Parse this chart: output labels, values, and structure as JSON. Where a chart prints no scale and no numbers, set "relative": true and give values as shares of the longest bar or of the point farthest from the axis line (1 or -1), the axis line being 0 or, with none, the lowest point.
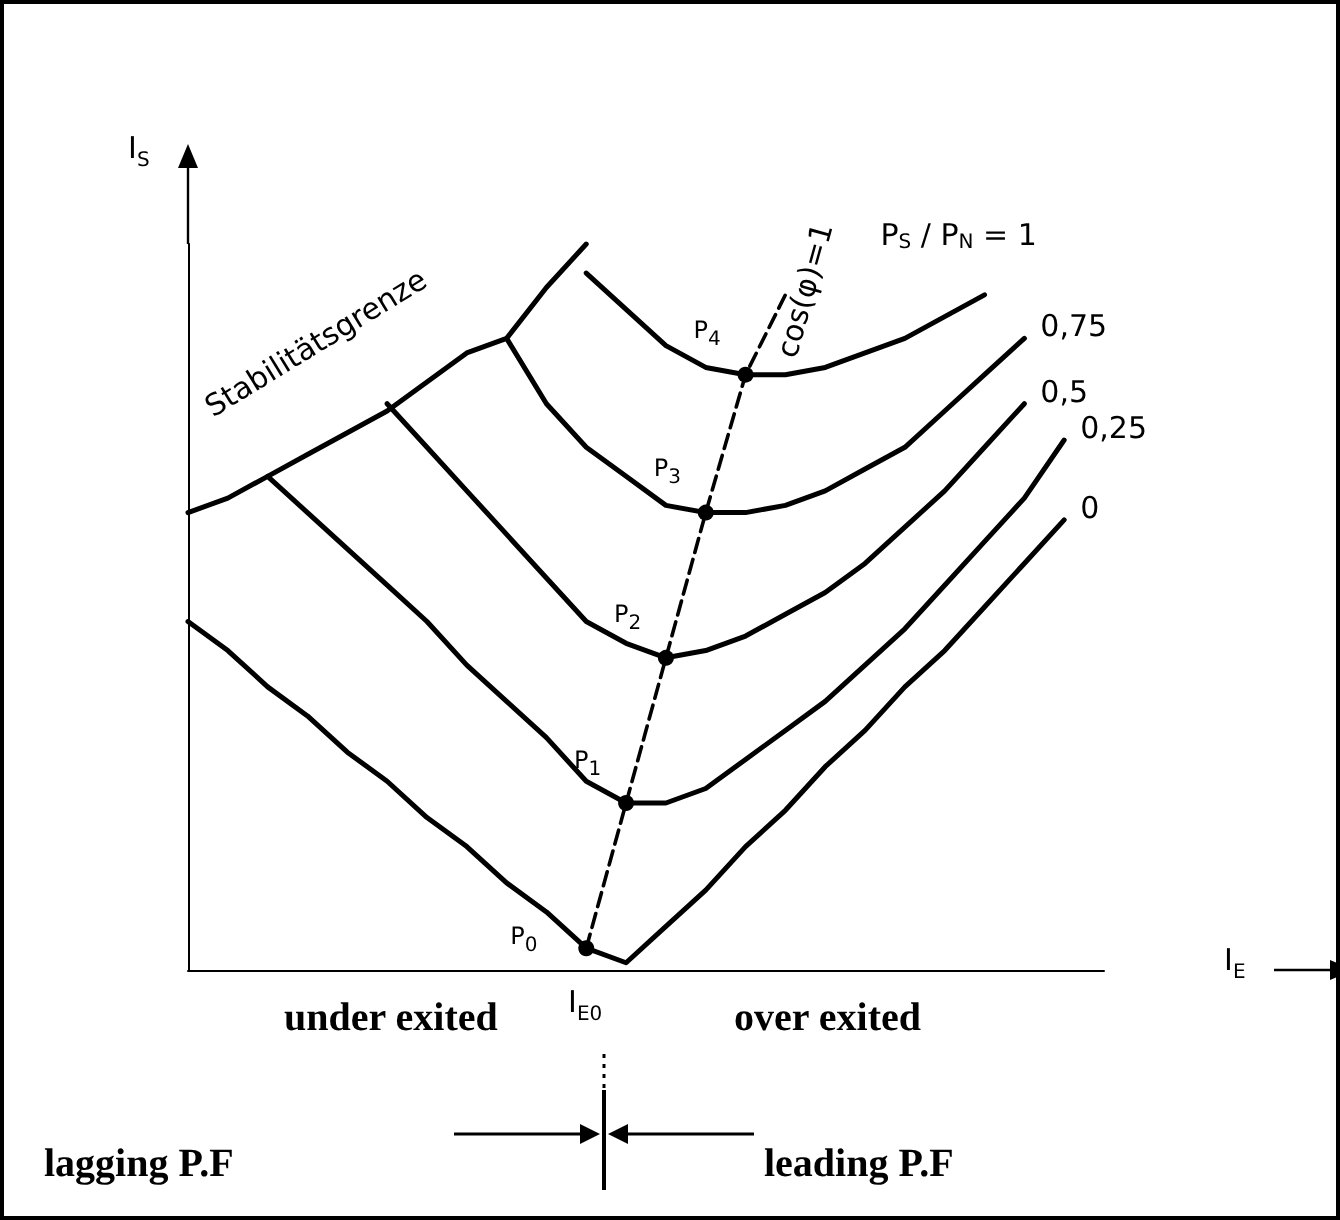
{
  "chart_data": {
    "type": "line",
    "relative": true,
    "xlabel": "I$_{E}$",
    "ylabel": "I$_{S}$",
    "categories": [
      null,
      null,
      null,
      null,
      null,
      null,
      null,
      null,
      null,
      null,
      null,
      null,
      null,
      null,
      null,
      null,
      null,
      null,
      null,
      null,
      null,
      null,
      null,
      null
    ],
    "series": [
      {
        "name": "0",
        "color": "#000000",
        "values": [
          0.48,
          0.44,
          0.39,
          0.35,
          0.3,
          0.26,
          0.21,
          0.17,
          0.12,
          0.08,
          0.03,
          0.01,
          0.06,
          0.11,
          0.17,
          0.22,
          0.28,
          0.33,
          0.39,
          0.44,
          0.5,
          0.56,
          0.62,
          null
        ]
      },
      {
        "name": "0,25",
        "color": "#000000",
        "values": [
          null,
          null,
          0.68,
          0.63,
          0.58,
          0.53,
          0.48,
          0.42,
          0.37,
          0.32,
          0.26,
          0.23,
          0.23,
          0.25,
          0.29,
          0.33,
          0.37,
          0.42,
          0.47,
          0.53,
          0.59,
          0.65,
          0.73,
          null
        ]
      },
      {
        "name": "0,5",
        "color": "#000000",
        "values": [
          null,
          null,
          null,
          null,
          null,
          0.78,
          0.72,
          0.66,
          0.6,
          0.54,
          0.48,
          0.45,
          0.43,
          0.44,
          0.46,
          0.49,
          0.52,
          0.56,
          0.61,
          0.66,
          0.72,
          0.78,
          null,
          null
        ]
      },
      {
        "name": "0,75",
        "color": "#000000",
        "values": [
          null,
          null,
          null,
          null,
          null,
          null,
          null,
          null,
          0.87,
          0.78,
          0.72,
          0.68,
          0.64,
          0.63,
          0.63,
          0.64,
          0.66,
          0.69,
          0.72,
          0.77,
          0.82,
          0.87,
          null,
          null
        ]
      },
      {
        "name": "P$_{S}$ / P$_{N}$ = 1",
        "color": "#000000",
        "values": [
          null,
          null,
          null,
          null,
          null,
          null,
          null,
          null,
          null,
          null,
          0.96,
          0.91,
          0.86,
          0.83,
          0.82,
          0.82,
          0.83,
          0.85,
          0.87,
          0.9,
          0.93,
          null,
          null,
          null
        ]
      },
      {
        "name": "Stabilitätsgrenze",
        "color": "#000000",
        "values": [
          0.63,
          0.65,
          0.68,
          0.71,
          0.74,
          0.77,
          0.81,
          0.85,
          0.87,
          0.94,
          1.0,
          null,
          null,
          null,
          null,
          null,
          null,
          null,
          null,
          null,
          null,
          null,
          null,
          null
        ]
      },
      {
        "name": "cos(φ)=1",
        "color": "#000000",
        "line_style": "dashed",
        "marker": "circle",
        "values": [
          null,
          null,
          null,
          null,
          null,
          null,
          null,
          null,
          null,
          null,
          0.03,
          0.23,
          0.43,
          0.63,
          0.82,
          0.93,
          null,
          null,
          null,
          null,
          null,
          null,
          null,
          null
        ]
      }
    ],
    "annotations": [
      "P$_{0}$",
      "P$_{1}$",
      "P$_{2}$",
      "P$_{3}$",
      "P$_{4}$",
      "I$_{E0}$",
      "under exited",
      "over exited",
      "lagging P.F",
      "leading P.F"
    ]
  }
}
